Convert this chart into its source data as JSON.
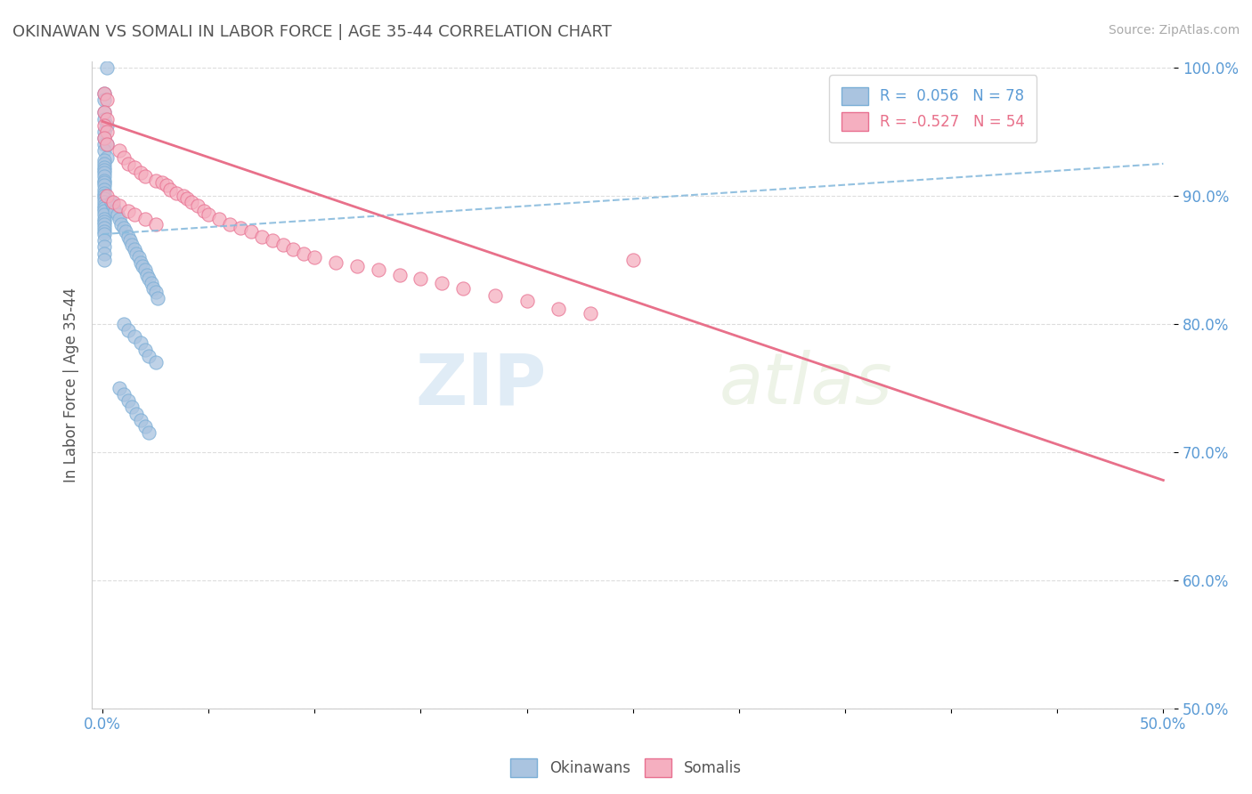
{
  "title": "OKINAWAN VS SOMALI IN LABOR FORCE | AGE 35-44 CORRELATION CHART",
  "source_text": "Source: ZipAtlas.com",
  "ylabel": "In Labor Force | Age 35-44",
  "xlim": [
    -0.005,
    0.505
  ],
  "ylim": [
    0.5,
    1.005
  ],
  "xticks": [
    0.0,
    0.05,
    0.1,
    0.15,
    0.2,
    0.25,
    0.3,
    0.35,
    0.4,
    0.45,
    0.5
  ],
  "xticklabels": [
    "0.0%",
    "",
    "",
    "",
    "",
    "",
    "",
    "",
    "",
    "",
    "50.0%"
  ],
  "yticks": [
    0.5,
    0.6,
    0.7,
    0.8,
    0.9,
    1.0
  ],
  "yticklabels": [
    "50.0%",
    "60.0%",
    "70.0%",
    "80.0%",
    "90.0%",
    "100.0%"
  ],
  "okinawan_color": "#aac4e0",
  "somali_color": "#f5afc0",
  "okinawan_edge": "#7aaed6",
  "somali_edge": "#e87090",
  "okinawan_R": 0.056,
  "okinawan_N": 78,
  "somali_R": -0.527,
  "somali_N": 54,
  "trend_okinawan_color": "#88bbdd",
  "trend_somali_color": "#e8708a",
  "watermark_top": "ZIP",
  "watermark_bot": "atlas",
  "background_color": "#ffffff",
  "grid_color": "#dddddd",
  "title_color": "#555555",
  "label_color": "#5b9bd5",
  "legend_label_color": "#5b9bd5",
  "legend_somali_color": "#e8708a",
  "okinawan_points_x": [
    0.002,
    0.001,
    0.001,
    0.001,
    0.001,
    0.002,
    0.001,
    0.001,
    0.001,
    0.002,
    0.001,
    0.002,
    0.001,
    0.001,
    0.001,
    0.001,
    0.001,
    0.001,
    0.001,
    0.001,
    0.001,
    0.001,
    0.001,
    0.001,
    0.001,
    0.001,
    0.001,
    0.001,
    0.001,
    0.001,
    0.001,
    0.001,
    0.001,
    0.001,
    0.001,
    0.001,
    0.001,
    0.001,
    0.001,
    0.001,
    0.004,
    0.005,
    0.006,
    0.007,
    0.008,
    0.009,
    0.01,
    0.011,
    0.012,
    0.013,
    0.014,
    0.015,
    0.016,
    0.017,
    0.018,
    0.019,
    0.02,
    0.021,
    0.022,
    0.023,
    0.024,
    0.025,
    0.026,
    0.01,
    0.012,
    0.015,
    0.018,
    0.02,
    0.022,
    0.025,
    0.008,
    0.01,
    0.012,
    0.014,
    0.016,
    0.018,
    0.02,
    0.022
  ],
  "okinawan_points_y": [
    1.0,
    0.98,
    0.975,
    0.965,
    0.96,
    0.955,
    0.95,
    0.945,
    0.94,
    0.94,
    0.935,
    0.93,
    0.928,
    0.925,
    0.922,
    0.92,
    0.918,
    0.915,
    0.912,
    0.91,
    0.908,
    0.905,
    0.902,
    0.9,
    0.898,
    0.895,
    0.892,
    0.89,
    0.888,
    0.885,
    0.882,
    0.88,
    0.878,
    0.875,
    0.872,
    0.87,
    0.865,
    0.86,
    0.855,
    0.85,
    0.895,
    0.892,
    0.888,
    0.885,
    0.882,
    0.878,
    0.875,
    0.872,
    0.868,
    0.865,
    0.862,
    0.858,
    0.855,
    0.852,
    0.848,
    0.845,
    0.842,
    0.838,
    0.835,
    0.832,
    0.828,
    0.825,
    0.82,
    0.8,
    0.795,
    0.79,
    0.785,
    0.78,
    0.775,
    0.77,
    0.75,
    0.745,
    0.74,
    0.735,
    0.73,
    0.725,
    0.72,
    0.715
  ],
  "somali_points_x": [
    0.001,
    0.002,
    0.001,
    0.002,
    0.001,
    0.002,
    0.001,
    0.002,
    0.008,
    0.01,
    0.012,
    0.015,
    0.018,
    0.02,
    0.025,
    0.028,
    0.03,
    0.032,
    0.035,
    0.038,
    0.04,
    0.042,
    0.045,
    0.048,
    0.05,
    0.055,
    0.06,
    0.065,
    0.07,
    0.075,
    0.08,
    0.085,
    0.09,
    0.095,
    0.1,
    0.11,
    0.12,
    0.13,
    0.14,
    0.15,
    0.16,
    0.17,
    0.185,
    0.2,
    0.215,
    0.23,
    0.25,
    0.002,
    0.005,
    0.008,
    0.012,
    0.015,
    0.02,
    0.025
  ],
  "somali_points_y": [
    0.98,
    0.975,
    0.965,
    0.96,
    0.955,
    0.95,
    0.945,
    0.94,
    0.935,
    0.93,
    0.925,
    0.922,
    0.918,
    0.915,
    0.912,
    0.91,
    0.908,
    0.905,
    0.902,
    0.9,
    0.898,
    0.895,
    0.892,
    0.888,
    0.885,
    0.882,
    0.878,
    0.875,
    0.872,
    0.868,
    0.865,
    0.862,
    0.858,
    0.855,
    0.852,
    0.848,
    0.845,
    0.842,
    0.838,
    0.835,
    0.832,
    0.828,
    0.822,
    0.818,
    0.812,
    0.808,
    0.85,
    0.9,
    0.895,
    0.892,
    0.888,
    0.885,
    0.882,
    0.878
  ],
  "trend_ok_x0": 0.0,
  "trend_ok_x1": 0.5,
  "trend_ok_y0": 0.87,
  "trend_ok_y1": 0.925,
  "trend_sm_x0": 0.0,
  "trend_sm_x1": 0.5,
  "trend_sm_y0": 0.958,
  "trend_sm_y1": 0.678
}
